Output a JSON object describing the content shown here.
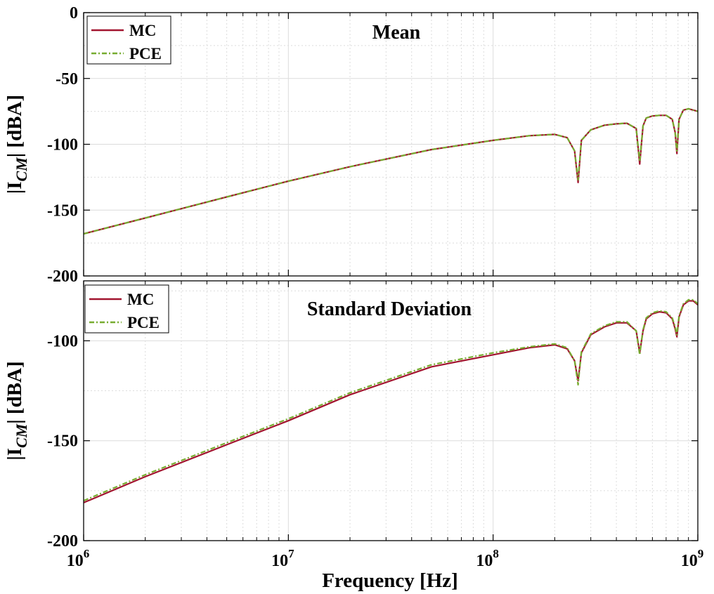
{
  "figure": {
    "xlabel": "Frequency [Hz]",
    "ylabel_main": "|I",
    "ylabel_sub": "CM",
    "ylabel_tail": "| [dBA]",
    "x_ticks": [
      {
        "value": 1000000,
        "base": "10",
        "exp": "6"
      },
      {
        "value": 10000000,
        "base": "10",
        "exp": "7"
      },
      {
        "value": 100000000,
        "base": "10",
        "exp": "8"
      },
      {
        "value": 1000000000,
        "base": "10",
        "exp": "9"
      }
    ]
  },
  "colors": {
    "mc": "#a2142f",
    "pce": "#77ac30",
    "grid": "#dcdcdc",
    "axes": "#000000"
  },
  "chart_data": [
    {
      "type": "line",
      "title": "Mean",
      "x_scale": "log",
      "xlim": [
        1000000,
        1000000000
      ],
      "ylim": [
        -200,
        0
      ],
      "y_ticks": [
        0,
        -50,
        -100,
        -150,
        -200
      ],
      "grid": true,
      "legend": {
        "placement": "top-left",
        "entries": [
          "MC",
          "PCE"
        ]
      },
      "series": [
        {
          "name": "MC",
          "x": [
            1000000,
            2000000,
            5000000,
            10000000,
            20000000,
            50000000,
            100000000,
            150000000,
            200000000,
            230000000,
            250000000,
            260000000,
            270000000,
            300000000,
            350000000,
            400000000,
            450000000,
            500000000,
            520000000,
            540000000,
            560000000,
            600000000,
            650000000,
            700000000,
            750000000,
            775000000,
            790000000,
            810000000,
            850000000,
            900000000,
            950000000,
            1000000000
          ],
          "y": [
            -168,
            -156,
            -140,
            -128,
            -117,
            -104,
            -97,
            -93.5,
            -92.5,
            -95,
            -105,
            -129,
            -97,
            -89,
            -85.5,
            -84.5,
            -84,
            -88,
            -115,
            -86,
            -80,
            -78.5,
            -78,
            -78,
            -81,
            -91,
            -107,
            -81,
            -74,
            -73,
            -74,
            -75
          ]
        },
        {
          "name": "PCE",
          "x": [
            1000000,
            2000000,
            5000000,
            10000000,
            20000000,
            50000000,
            100000000,
            150000000,
            200000000,
            230000000,
            250000000,
            260000000,
            270000000,
            300000000,
            350000000,
            400000000,
            450000000,
            500000000,
            520000000,
            540000000,
            560000000,
            600000000,
            650000000,
            700000000,
            750000000,
            775000000,
            790000000,
            810000000,
            850000000,
            900000000,
            950000000,
            1000000000
          ],
          "y": [
            -168,
            -156,
            -140,
            -128,
            -117,
            -104,
            -97,
            -93.5,
            -92.5,
            -95,
            -105,
            -127,
            -97,
            -89,
            -85.5,
            -84.5,
            -84,
            -88,
            -113,
            -86,
            -80,
            -78.5,
            -78,
            -78,
            -81,
            -91,
            -105,
            -81,
            -74,
            -73,
            -74,
            -75
          ]
        }
      ]
    },
    {
      "type": "line",
      "title": "Standard Deviation",
      "x_scale": "log",
      "xlim": [
        1000000,
        1000000000
      ],
      "ylim": [
        -200,
        -70
      ],
      "y_ticks": [
        -100,
        -150,
        -200
      ],
      "grid": true,
      "legend": {
        "placement": "top-left",
        "entries": [
          "MC",
          "PCE"
        ]
      },
      "series": [
        {
          "name": "MC",
          "x": [
            1000000,
            2000000,
            5000000,
            10000000,
            20000000,
            50000000,
            100000000,
            150000000,
            200000000,
            230000000,
            250000000,
            260000000,
            270000000,
            300000000,
            350000000,
            400000000,
            450000000,
            500000000,
            520000000,
            540000000,
            560000000,
            600000000,
            650000000,
            700000000,
            750000000,
            775000000,
            790000000,
            810000000,
            850000000,
            900000000,
            950000000,
            1000000000
          ],
          "y": [
            -181,
            -168,
            -152,
            -140,
            -127,
            -113,
            -107,
            -103.5,
            -102,
            -104,
            -110,
            -120,
            -106,
            -97,
            -93,
            -91,
            -91,
            -95,
            -106,
            -95,
            -89,
            -86.5,
            -85.5,
            -86,
            -89,
            -94,
            -98,
            -88,
            -82,
            -80,
            -80,
            -82
          ]
        },
        {
          "name": "PCE",
          "x": [
            1000000,
            2000000,
            5000000,
            10000000,
            20000000,
            50000000,
            100000000,
            150000000,
            200000000,
            230000000,
            250000000,
            260000000,
            270000000,
            300000000,
            350000000,
            400000000,
            450000000,
            500000000,
            520000000,
            540000000,
            560000000,
            600000000,
            650000000,
            700000000,
            750000000,
            775000000,
            790000000,
            810000000,
            850000000,
            900000000,
            950000000,
            1000000000
          ],
          "y": [
            -180,
            -167,
            -151,
            -139,
            -126,
            -112,
            -106,
            -103,
            -101.5,
            -103.5,
            -110,
            -122,
            -105.5,
            -96.5,
            -92.5,
            -90.5,
            -90.5,
            -95,
            -107,
            -94.5,
            -88.5,
            -86,
            -85,
            -85.5,
            -88.5,
            -93,
            -97,
            -87.5,
            -81.5,
            -79.5,
            -79.5,
            -81.5
          ]
        }
      ]
    }
  ]
}
